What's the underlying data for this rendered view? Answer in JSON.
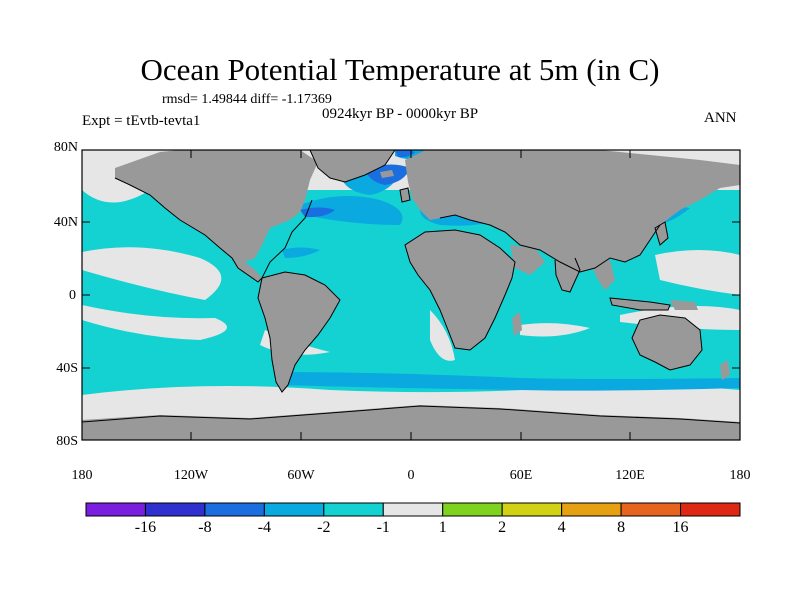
{
  "title": "Ocean Potential Temperature at 5m (in C)",
  "stats_line": "rmsd= 1.49844 diff= -1.17369",
  "period": "0924kyr BP - 0000kyr BP",
  "experiment": "Expt = tEvtb-tevta1",
  "season": "ANN",
  "lat_ticks": [
    "80N",
    "40N",
    "0",
    "40S",
    "80S"
  ],
  "lon_ticks": [
    "180",
    "120W",
    "60W",
    "0",
    "60E",
    "120E",
    "180"
  ],
  "colors": {
    "land": "#999999",
    "coast": "#000000",
    "bin_m2_m1": "#14d2d2",
    "bin_m4_m2": "#0aa9e0",
    "bin_m8_m4": "#1a6ee0",
    "bin_m1_1": "#e6e6e6"
  },
  "colorbar": {
    "colors": [
      "#7a1ee0",
      "#3030d0",
      "#1a6ee0",
      "#0aa9e0",
      "#14d2d2",
      "#e6e6e6",
      "#7fd21e",
      "#d2d214",
      "#e6a014",
      "#e6641e",
      "#dc2814"
    ],
    "labels": [
      "-16",
      "-8",
      "-4",
      "-2",
      "-1",
      "1",
      "2",
      "4",
      "8",
      "16"
    ]
  }
}
